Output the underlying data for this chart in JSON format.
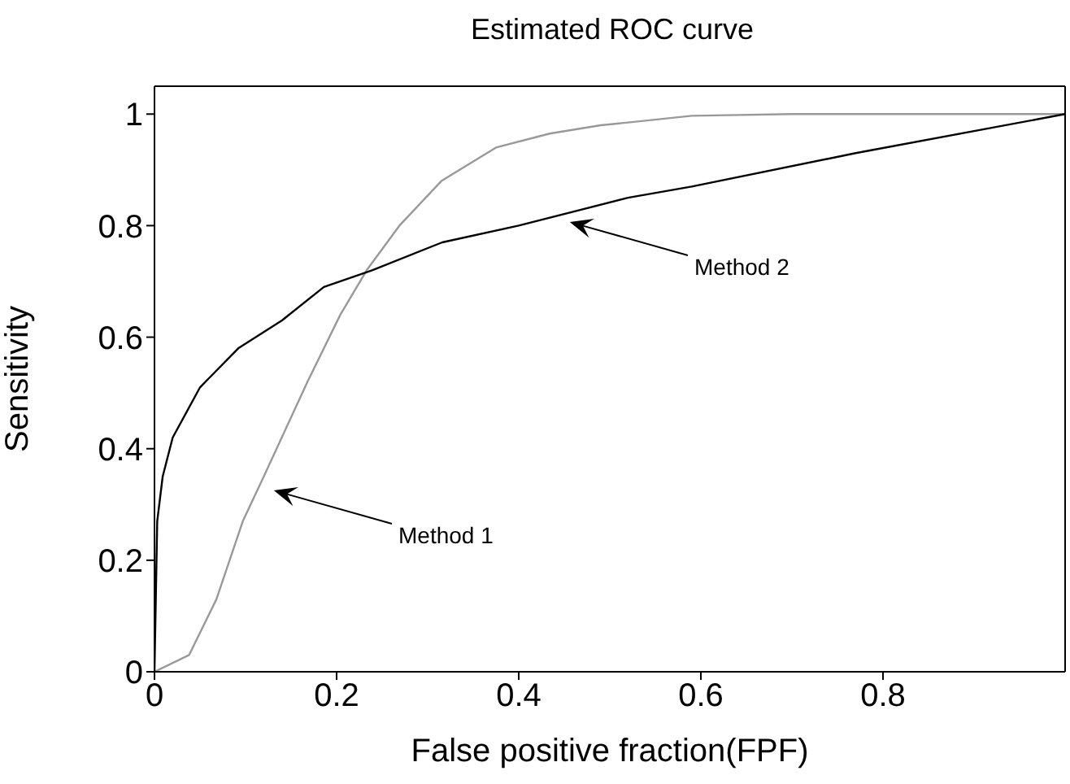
{
  "chart_data": {
    "type": "line",
    "title": "Estimated ROC curve",
    "xlabel": "False positive fraction(FPF)",
    "ylabel": "Sensitivity",
    "xlim": [
      0,
      1
    ],
    "xticks": [
      0,
      0.2,
      0.4,
      0.6,
      0.8
    ],
    "ylim": [
      0,
      1.05
    ],
    "yticks": [
      0,
      0.2,
      0.4,
      0.6,
      0.8,
      1
    ],
    "legend": false,
    "marker": "none",
    "line_style": "solid",
    "series": [
      {
        "color": "#999999",
        "x": [
          0,
          0.038,
          0.068,
          0.097,
          0.12,
          0.168,
          0.204,
          0.233,
          0.269,
          0.315,
          0.375,
          0.434,
          0.49,
          0.52,
          0.59,
          0.7,
          0.8,
          0.9,
          1
        ],
        "values": [
          0,
          0.03,
          0.13,
          0.27,
          0.35,
          0.52,
          0.64,
          0.72,
          0.8,
          0.88,
          0.94,
          0.965,
          0.98,
          0.985,
          0.997,
          1,
          1,
          1,
          1
        ]
      },
      {
        "color": "#000000",
        "x": [
          0,
          0.003,
          0.009,
          0.02,
          0.05,
          0.092,
          0.14,
          0.186,
          0.239,
          0.316,
          0.4,
          0.52,
          0.59,
          0.77,
          1
        ],
        "values": [
          0,
          0.27,
          0.35,
          0.42,
          0.51,
          0.58,
          0.63,
          0.69,
          0.72,
          0.77,
          0.8,
          0.85,
          0.87,
          0.93,
          1
        ]
      }
    ],
    "annotations": [
      "Method 1",
      "Method 2"
    ]
  }
}
